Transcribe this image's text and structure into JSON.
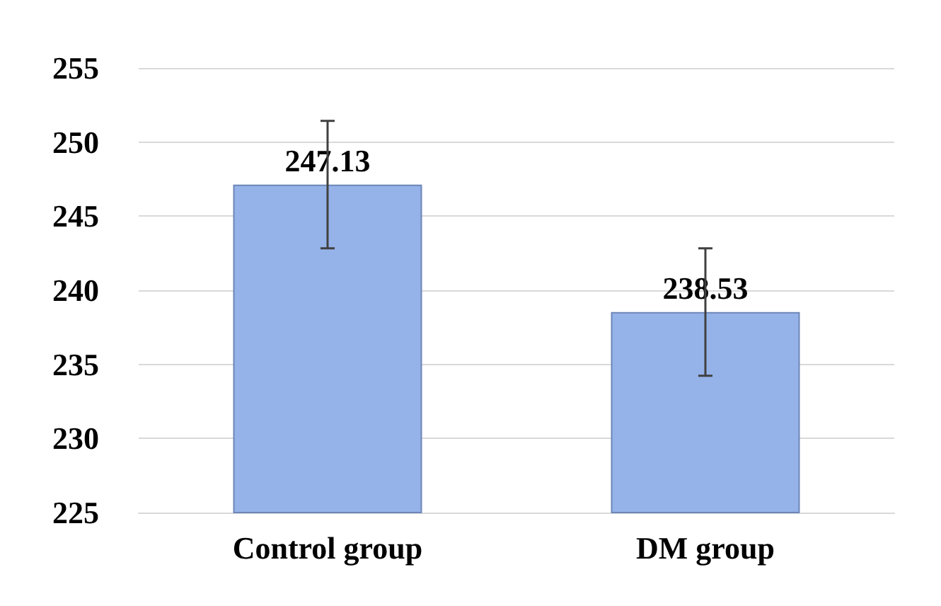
{
  "chart_data": {
    "type": "bar",
    "categories": [
      "Control group",
      "DM group"
    ],
    "values": [
      247.13,
      238.53
    ],
    "errors": [
      4.3,
      4.3
    ],
    "color": "#95b3e8",
    "ylim": [
      225,
      255
    ],
    "yticks": [
      225,
      230,
      235,
      240,
      245,
      250,
      255
    ],
    "grid": "y",
    "data_labels": true
  }
}
